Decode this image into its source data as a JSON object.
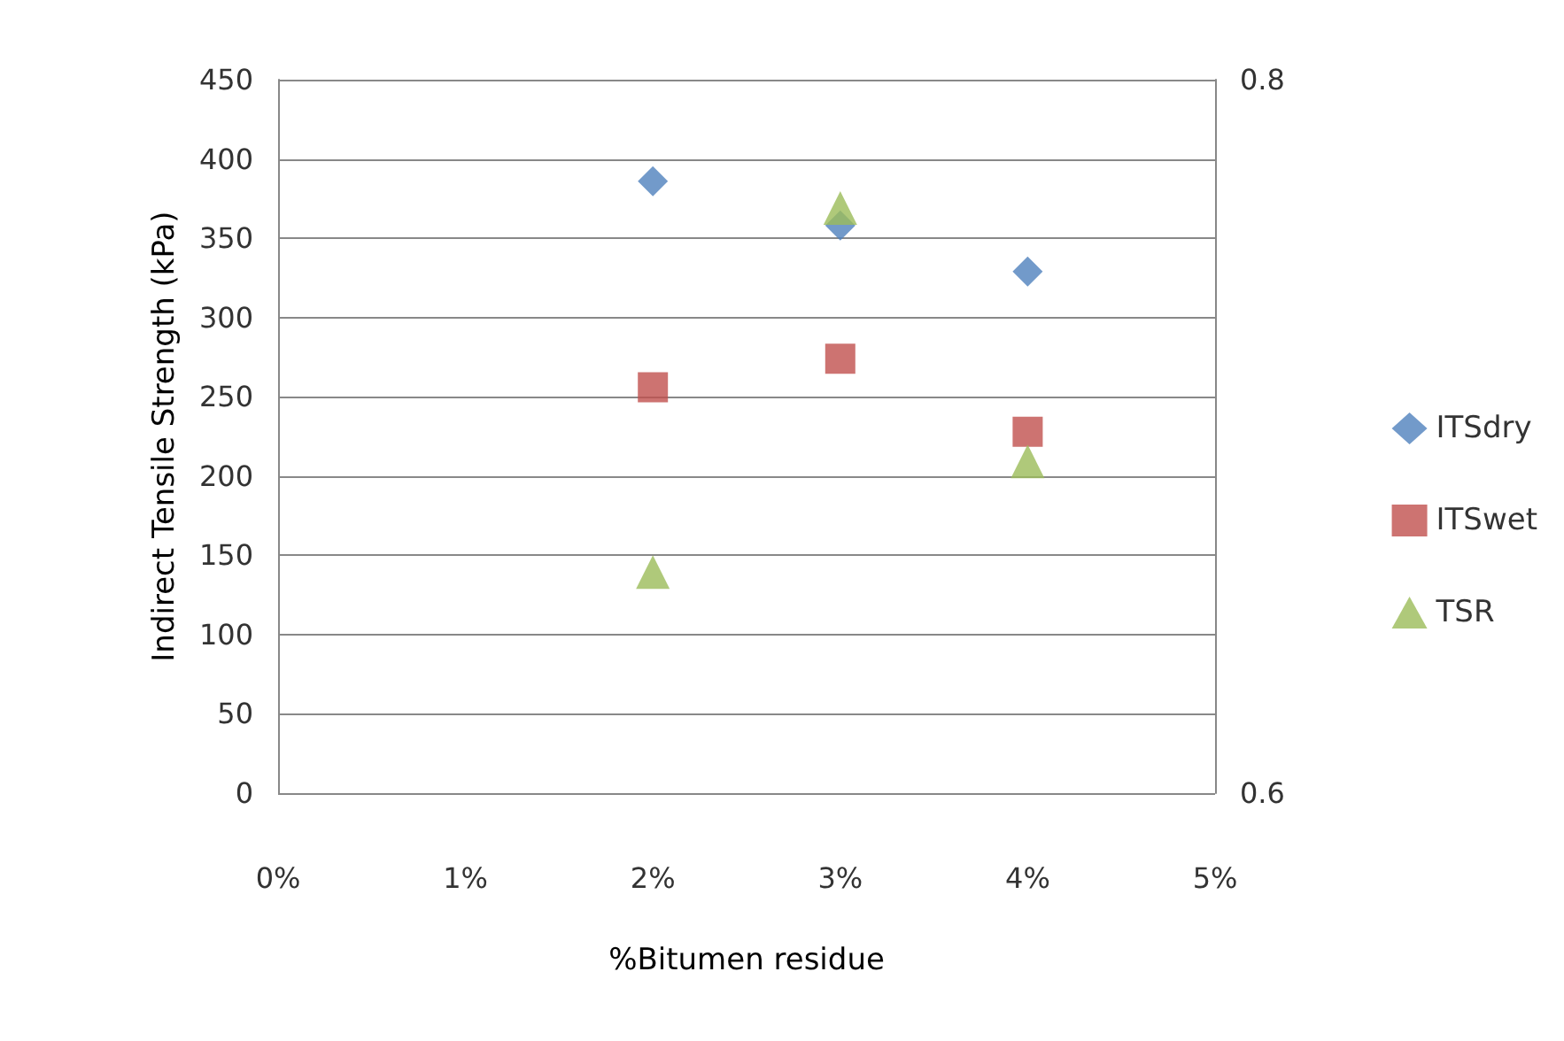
{
  "chart_data": {
    "type": "scatter",
    "xlabel": "%Bitumen residue",
    "ylabel": "Indirect Tensile Strength (kPa)",
    "x": [
      2,
      3,
      4
    ],
    "xlim": [
      0,
      5
    ],
    "xticks": [
      {
        "value": 0,
        "label": "0%"
      },
      {
        "value": 1,
        "label": "1%"
      },
      {
        "value": 2,
        "label": "2%"
      },
      {
        "value": 3,
        "label": "3%"
      },
      {
        "value": 4,
        "label": "4%"
      },
      {
        "value": 5,
        "label": "5%"
      }
    ],
    "ylim": [
      0,
      450
    ],
    "yticks": [
      0,
      50,
      100,
      150,
      200,
      250,
      300,
      350,
      400,
      450
    ],
    "y2lim": [
      0.6,
      0.8
    ],
    "y2ticks": [
      0.6,
      0.8
    ],
    "grid": "y",
    "legend": "right",
    "series": [
      {
        "name": "ITSdry",
        "color": "#4f81bd",
        "marker": "diamond",
        "values": [
          386,
          358,
          329
        ]
      },
      {
        "name": "ITSwet",
        "color": "#c0504d",
        "marker": "square",
        "values": [
          256,
          274,
          228
        ]
      },
      {
        "name": "TSR",
        "color": "#9bbb59",
        "marker": "triangle",
        "axis": "y2",
        "values": [
          0.662,
          0.764,
          0.693
        ]
      }
    ]
  }
}
